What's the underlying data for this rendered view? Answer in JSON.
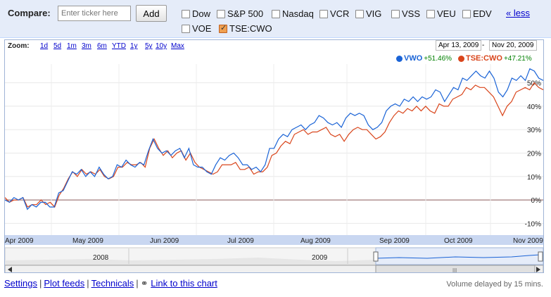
{
  "compare": {
    "label": "Compare:",
    "ticker_placeholder": "Enter ticker here",
    "add_label": "Add",
    "options": [
      {
        "label": "Dow",
        "checked": false
      },
      {
        "label": "S&P 500",
        "checked": false
      },
      {
        "label": "Nasdaq",
        "checked": false
      },
      {
        "label": "VCR",
        "checked": false
      },
      {
        "label": "VIG",
        "checked": false
      },
      {
        "label": "VSS",
        "checked": false
      },
      {
        "label": "VEU",
        "checked": false
      },
      {
        "label": "EDV",
        "checked": false
      },
      {
        "label": "VOE",
        "checked": false
      },
      {
        "label": "TSE:CWO",
        "checked": true
      }
    ],
    "less_label": "« less"
  },
  "zoom": {
    "label": "Zoom:",
    "options": [
      "1d",
      "5d",
      "1m",
      "3m",
      "6m",
      "YTD",
      "1y",
      "5y",
      "10y",
      "Max"
    ],
    "date_from": "Apr 13, 2009",
    "date_sep": "-",
    "date_to": "Nov 20, 2009"
  },
  "legend": [
    {
      "name": "VWO",
      "change": "+51.46%",
      "color": "#1a63d6"
    },
    {
      "name": "TSE:CWO",
      "change": "+47.21%",
      "color": "#d9451b"
    }
  ],
  "chart_data": {
    "type": "line",
    "y_ticks": [
      "50%",
      "40%",
      "30%",
      "20%",
      "10%",
      "0%",
      "-10%"
    ],
    "x_ticks": [
      "Apr 2009",
      "May 2009",
      "Jun 2009",
      "Jul 2009",
      "Aug 2009",
      "Sep 2009",
      "Oct 2009",
      "Nov 2009"
    ],
    "ylim": [
      -15,
      58
    ],
    "series": [
      {
        "name": "VWO",
        "color": "#1a63d6",
        "values": [
          0,
          -1,
          1,
          0,
          1,
          -4,
          -2,
          -3,
          -1,
          -1,
          -3,
          -3,
          3,
          4,
          8,
          12,
          11,
          13,
          10,
          12,
          10,
          14,
          11,
          9,
          10,
          15,
          14,
          17,
          15,
          14,
          16,
          15,
          21,
          26,
          22,
          20,
          21,
          19,
          21,
          22,
          18,
          22,
          15,
          14,
          14,
          12,
          11,
          15,
          18,
          17,
          19,
          20,
          18,
          15,
          15,
          13,
          14,
          12,
          15,
          22,
          22,
          26,
          28,
          27,
          30,
          31,
          32,
          30,
          32,
          33,
          36,
          35,
          33,
          32,
          33,
          31,
          35,
          37,
          36,
          37,
          36,
          32,
          30,
          31,
          33,
          38,
          40,
          41,
          40,
          43,
          42,
          44,
          42,
          44,
          43,
          44,
          47,
          46,
          42,
          45,
          48,
          47,
          52,
          51,
          53,
          55,
          53,
          52,
          55,
          52,
          46,
          44,
          47,
          52,
          51,
          53,
          51,
          56,
          55,
          52,
          51
        ]
      },
      {
        "name": "TSE:CWO",
        "color": "#d9451b",
        "values": [
          1,
          -1,
          0,
          0,
          1,
          -3,
          -2,
          -2,
          0,
          -2,
          -1,
          -3,
          2,
          5,
          9,
          12,
          10,
          13,
          11,
          12,
          11,
          13,
          10,
          9,
          10,
          14,
          14,
          16,
          15,
          15,
          16,
          14,
          22,
          26,
          22,
          19,
          21,
          18,
          20,
          21,
          17,
          20,
          16,
          14,
          13,
          12,
          11,
          12,
          15,
          15,
          15,
          16,
          13,
          13,
          14,
          11,
          12,
          12,
          14,
          19,
          20,
          23,
          25,
          24,
          28,
          29,
          30,
          28,
          29,
          29,
          30,
          31,
          28,
          27,
          28,
          25,
          28,
          30,
          31,
          30,
          30,
          28,
          26,
          27,
          29,
          33,
          36,
          38,
          37,
          39,
          38,
          40,
          38,
          40,
          38,
          37,
          41,
          40,
          40,
          43,
          44,
          45,
          48,
          47,
          49,
          48,
          48,
          46,
          44,
          40,
          36,
          40,
          42,
          46,
          47,
          48,
          47,
          50,
          48,
          47
        ]
      }
    ]
  },
  "navigator": {
    "labels": [
      "2008",
      "2009"
    ]
  },
  "footer": {
    "settings": "Settings",
    "plot_feeds": "Plot feeds",
    "technicals": "Technicals",
    "link": "Link to this chart",
    "volume_note": "Volume delayed by 15 mins."
  }
}
